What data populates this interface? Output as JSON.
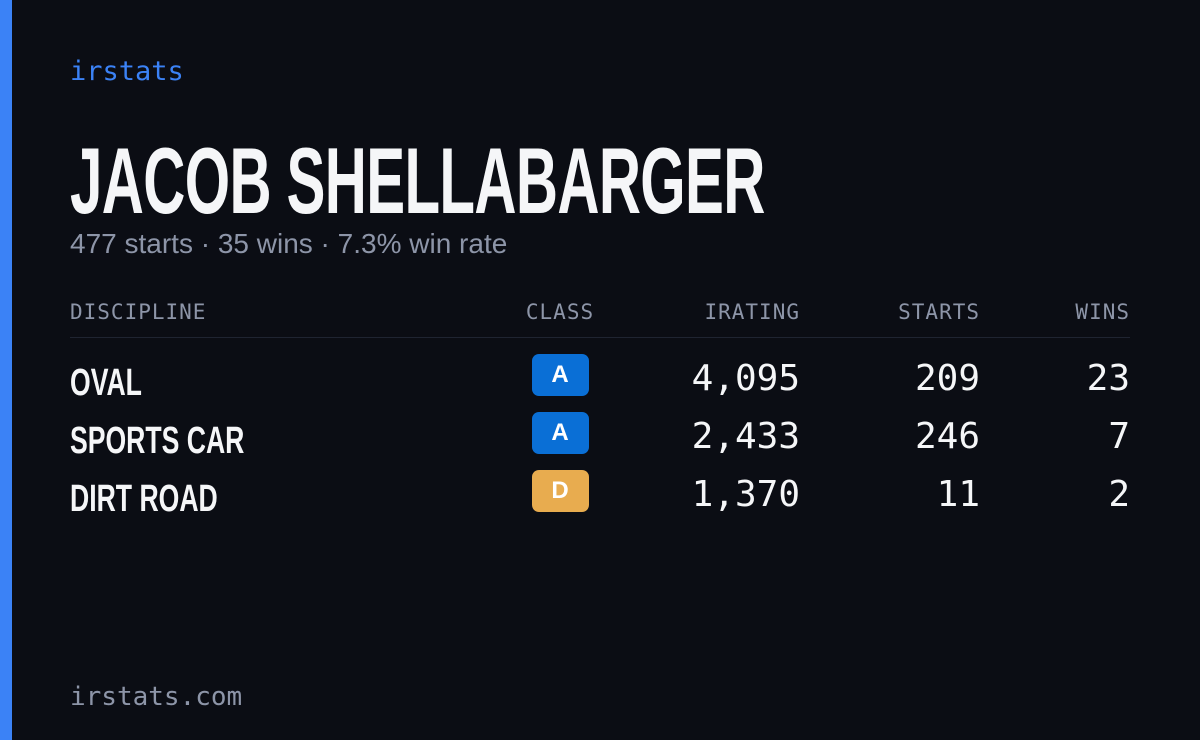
{
  "brand": "irstats",
  "driver": {
    "name": "JACOB SHELLABARGER",
    "summary": "477 starts · 35 wins · 7.3% win rate"
  },
  "table": {
    "headers": [
      "DISCIPLINE",
      "CLASS",
      "IRATING",
      "STARTS",
      "WINS"
    ],
    "rows": [
      {
        "discipline": "OVAL",
        "class": "A",
        "class_color": "#0a6fd6",
        "irating": "4,095",
        "starts": 209,
        "wins": 23
      },
      {
        "discipline": "SPORTS CAR",
        "class": "A",
        "class_color": "#0a6fd6",
        "irating": "2,433",
        "starts": 246,
        "wins": 7
      },
      {
        "discipline": "DIRT ROAD",
        "class": "D",
        "class_color": "#e8ac4f",
        "irating": "1,370",
        "starts": 11,
        "wins": 2
      }
    ]
  },
  "footer": "irstats.com"
}
